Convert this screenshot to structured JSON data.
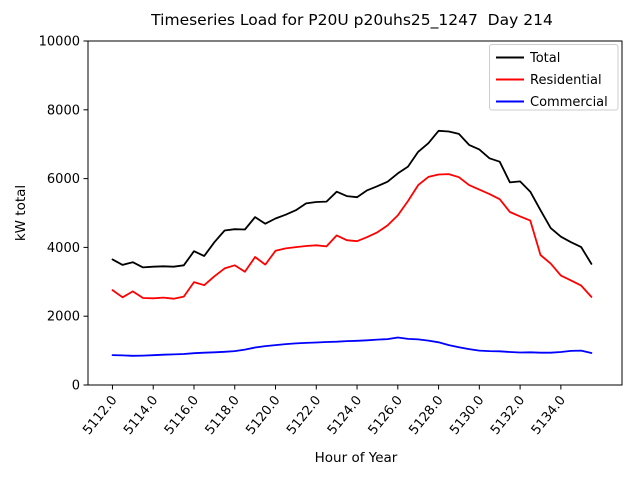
{
  "chart_data": {
    "type": "line",
    "title": "Timeseries Load for P20U p20uhs25_1247  Day 214",
    "xlabel": "Hour of Year",
    "ylabel": "kW total",
    "xlim": [
      5110.8,
      5137.0
    ],
    "ylim": [
      0,
      10000
    ],
    "grid": false,
    "legend_position": "upper right",
    "background_color": "#ffffff",
    "axis_color": "#000000",
    "legend_frame_color": "#cccccc",
    "xticks": {
      "values": [
        5112,
        5114,
        5116,
        5118,
        5120,
        5122,
        5124,
        5126,
        5128,
        5130,
        5132,
        5134
      ],
      "labels": [
        "5112.0",
        "5114.0",
        "5116.0",
        "5118.0",
        "5120.0",
        "5122.0",
        "5124.0",
        "5126.0",
        "5128.0",
        "5130.0",
        "5132.0",
        "5134.0"
      ]
    },
    "yticks": {
      "values": [
        0,
        2000,
        4000,
        6000,
        8000,
        10000
      ],
      "labels": [
        "0",
        "2000",
        "4000",
        "6000",
        "8000",
        "10000"
      ]
    },
    "x": [
      5112.0,
      5112.5,
      5113.0,
      5113.5,
      5114.0,
      5114.5,
      5115.0,
      5115.5,
      5116.0,
      5116.5,
      5117.0,
      5117.5,
      5118.0,
      5118.5,
      5119.0,
      5119.5,
      5120.0,
      5120.5,
      5121.0,
      5121.5,
      5122.0,
      5122.5,
      5123.0,
      5123.5,
      5124.0,
      5124.5,
      5125.0,
      5125.5,
      5126.0,
      5126.5,
      5127.0,
      5127.5,
      5128.0,
      5128.5,
      5129.0,
      5129.5,
      5130.0,
      5130.5,
      5131.0,
      5131.5,
      5132.0,
      5132.5,
      5133.0,
      5133.5,
      5134.0,
      5134.5,
      5135.0,
      5135.5
    ],
    "series": [
      {
        "name": "Total",
        "color": "#000000",
        "values": [
          3650,
          3490,
          3570,
          3420,
          3440,
          3450,
          3440,
          3480,
          3890,
          3750,
          4150,
          4490,
          4530,
          4520,
          4880,
          4690,
          4840,
          4950,
          5080,
          5280,
          5320,
          5330,
          5620,
          5490,
          5460,
          5660,
          5780,
          5910,
          6150,
          6350,
          6780,
          7030,
          7390,
          7370,
          7300,
          6980,
          6850,
          6590,
          6490,
          5890,
          5920,
          5620,
          5080,
          4560,
          4310,
          4150,
          4010,
          3520
        ]
      },
      {
        "name": "Residential",
        "color": "#ff0000",
        "values": [
          2760,
          2550,
          2720,
          2530,
          2520,
          2540,
          2510,
          2570,
          2990,
          2900,
          3160,
          3390,
          3480,
          3290,
          3720,
          3500,
          3900,
          3970,
          4010,
          4040,
          4060,
          4030,
          4350,
          4210,
          4180,
          4300,
          4440,
          4640,
          4930,
          5350,
          5810,
          6050,
          6120,
          6130,
          6040,
          5810,
          5680,
          5550,
          5400,
          5030,
          4900,
          4780,
          3780,
          3530,
          3180,
          3040,
          2890,
          2560
        ]
      },
      {
        "name": "Commercial",
        "color": "#0000ff",
        "values": [
          870,
          860,
          850,
          855,
          865,
          880,
          890,
          900,
          925,
          940,
          950,
          965,
          985,
          1030,
          1090,
          1130,
          1160,
          1190,
          1210,
          1225,
          1235,
          1250,
          1260,
          1275,
          1285,
          1300,
          1320,
          1335,
          1380,
          1340,
          1325,
          1290,
          1240,
          1160,
          1100,
          1045,
          1000,
          985,
          980,
          960,
          945,
          950,
          940,
          940,
          960,
          990,
          1000,
          930
        ]
      }
    ]
  }
}
